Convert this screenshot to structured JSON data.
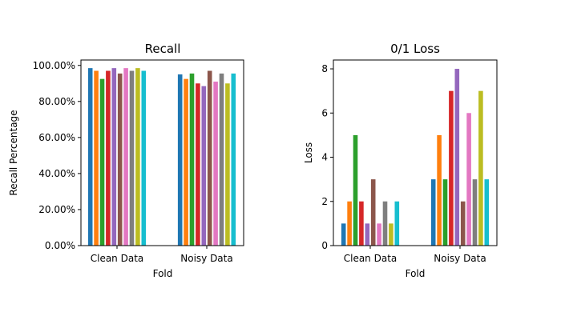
{
  "chart_data": [
    {
      "type": "bar",
      "title": "Recall",
      "xlabel": "Fold",
      "ylabel": "Recall Percentage",
      "categories": [
        "Clean Data",
        "Noisy Data"
      ],
      "ylim": [
        0,
        1.03
      ],
      "yticks": [
        0,
        0.2,
        0.4,
        0.6,
        0.8,
        1.0
      ],
      "ytick_labels": [
        "0.00%",
        "20.00%",
        "40.00%",
        "60.00%",
        "80.00%",
        "100.00%"
      ],
      "grid": false,
      "series": [
        {
          "color": "#1f77b4",
          "values": [
            0.985,
            0.95
          ]
        },
        {
          "color": "#ff7f0e",
          "values": [
            0.97,
            0.925
          ]
        },
        {
          "color": "#2ca02c",
          "values": [
            0.925,
            0.955
          ]
        },
        {
          "color": "#d62728",
          "values": [
            0.97,
            0.9
          ]
        },
        {
          "color": "#9467bd",
          "values": [
            0.985,
            0.885
          ]
        },
        {
          "color": "#8c564b",
          "values": [
            0.955,
            0.97
          ]
        },
        {
          "color": "#e377c2",
          "values": [
            0.985,
            0.91
          ]
        },
        {
          "color": "#7f7f7f",
          "values": [
            0.97,
            0.955
          ]
        },
        {
          "color": "#bcbd22",
          "values": [
            0.985,
            0.9
          ]
        },
        {
          "color": "#17becf",
          "values": [
            0.97,
            0.955
          ]
        }
      ]
    },
    {
      "type": "bar",
      "title": "0/1 Loss",
      "xlabel": "Fold",
      "ylabel": "Loss",
      "categories": [
        "Clean Data",
        "Noisy Data"
      ],
      "ylim": [
        0,
        8.4
      ],
      "yticks": [
        0,
        2,
        4,
        6,
        8
      ],
      "ytick_labels": [
        "0",
        "2",
        "4",
        "6",
        "8"
      ],
      "grid": false,
      "series": [
        {
          "color": "#1f77b4",
          "values": [
            1,
            3
          ]
        },
        {
          "color": "#ff7f0e",
          "values": [
            2,
            5
          ]
        },
        {
          "color": "#2ca02c",
          "values": [
            5,
            3
          ]
        },
        {
          "color": "#d62728",
          "values": [
            2,
            7
          ]
        },
        {
          "color": "#9467bd",
          "values": [
            1,
            8
          ]
        },
        {
          "color": "#8c564b",
          "values": [
            3,
            2
          ]
        },
        {
          "color": "#e377c2",
          "values": [
            1,
            6
          ]
        },
        {
          "color": "#7f7f7f",
          "values": [
            2,
            3
          ]
        },
        {
          "color": "#bcbd22",
          "values": [
            1,
            7
          ]
        },
        {
          "color": "#17becf",
          "values": [
            2,
            3
          ]
        }
      ]
    }
  ]
}
